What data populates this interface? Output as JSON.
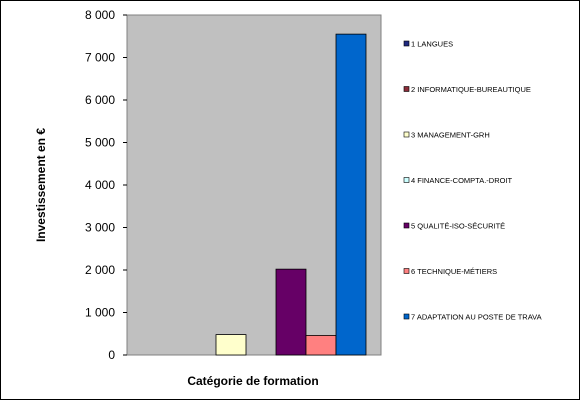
{
  "chart_data": {
    "type": "bar",
    "title": "",
    "xlabel": "Catégorie de formation",
    "ylabel": "Investissement en €",
    "ylim": [
      0,
      8000
    ],
    "yticks": [
      0,
      1000,
      2000,
      3000,
      4000,
      5000,
      6000,
      7000,
      8000
    ],
    "ytick_labels": [
      "0",
      "1 000",
      "2 000",
      "3 000",
      "4 000",
      "5 000",
      "6 000",
      "7 000",
      "8 000"
    ],
    "grid": false,
    "plot_background": "#c0c0c0",
    "legend_position": "right",
    "series": [
      {
        "name": "1 LANGUES",
        "value": 0,
        "color": "#1f2a80"
      },
      {
        "name": "2 INFORMATIQUE-BUREAUTIQUE",
        "value": 0,
        "color": "#8b2d3a"
      },
      {
        "name": "3 MANAGEMENT-GRH",
        "value": 480,
        "color": "#ffffcc"
      },
      {
        "name": "4 FINANCE-COMPTA.-DROIT",
        "value": 0,
        "color": "#ccffff"
      },
      {
        "name": "5 QUALITÉ-ISO-SÉCURITÉ",
        "value": 2020,
        "color": "#660066"
      },
      {
        "name": "6 TECHNIQUE-MÉTIERS",
        "value": 460,
        "color": "#ff8080"
      },
      {
        "name": "7 ADAPTATION AU POSTE DE TRAVA",
        "value": 7550,
        "color": "#0066cc"
      }
    ]
  }
}
